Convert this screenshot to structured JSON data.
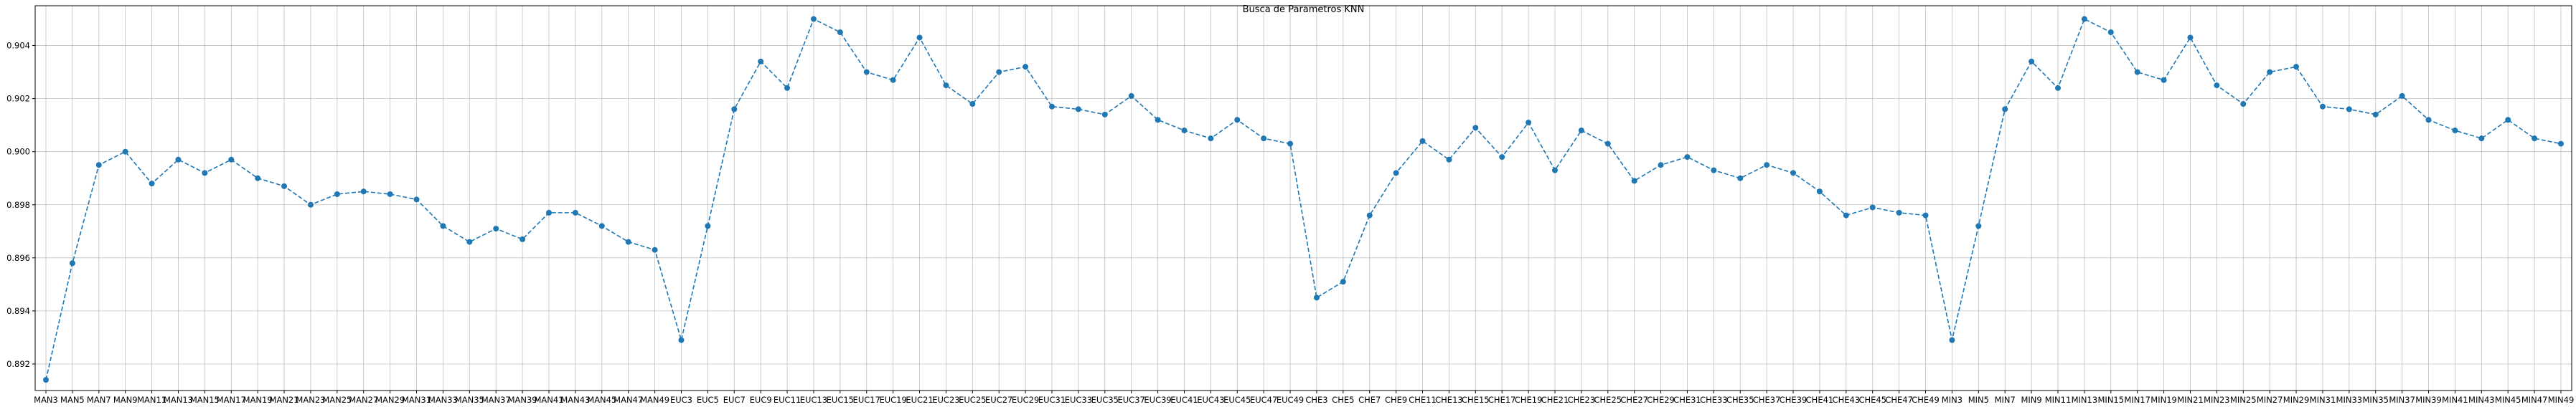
{
  "chart_data": {
    "type": "line",
    "title": "Busca de Parametros KNN",
    "xlabel": "",
    "ylabel": "",
    "ylim": [
      0.891,
      0.9055
    ],
    "yticks": [
      0.892,
      0.894,
      0.896,
      0.898,
      0.9,
      0.902,
      0.904
    ],
    "grid": true,
    "line_color": "#1f77b4",
    "line_style": "dashed",
    "marker": "circle",
    "categories": [
      "MAN3",
      "MAN5",
      "MAN7",
      "MAN9",
      "MAN11",
      "MAN13",
      "MAN15",
      "MAN17",
      "MAN19",
      "MAN21",
      "MAN23",
      "MAN25",
      "MAN27",
      "MAN29",
      "MAN31",
      "MAN33",
      "MAN35",
      "MAN37",
      "MAN39",
      "MAN41",
      "MAN43",
      "MAN45",
      "MAN47",
      "MAN49",
      "EUC3",
      "EUC5",
      "EUC7",
      "EUC9",
      "EUC11",
      "EUC13",
      "EUC15",
      "EUC17",
      "EUC19",
      "EUC21",
      "EUC23",
      "EUC25",
      "EUC27",
      "EUC29",
      "EUC31",
      "EUC33",
      "EUC35",
      "EUC37",
      "EUC39",
      "EUC41",
      "EUC43",
      "EUC45",
      "EUC47",
      "EUC49",
      "CHE3",
      "CHE5",
      "CHE7",
      "CHE9",
      "CHE11",
      "CHE13",
      "CHE15",
      "CHE17",
      "CHE19",
      "CHE21",
      "CHE23",
      "CHE25",
      "CHE27",
      "CHE29",
      "CHE31",
      "CHE33",
      "CHE35",
      "CHE37",
      "CHE39",
      "CHE41",
      "CHE43",
      "CHE45",
      "CHE47",
      "CHE49",
      "MIN3",
      "MIN5",
      "MIN7",
      "MIN9",
      "MIN11",
      "MIN13",
      "MIN15",
      "MIN17",
      "MIN19",
      "MIN21",
      "MIN23",
      "MIN25",
      "MIN27",
      "MIN29",
      "MIN31",
      "MIN33",
      "MIN35",
      "MIN37",
      "MIN39",
      "MIN41",
      "MIN43",
      "MIN45",
      "MIN47",
      "MIN49"
    ],
    "values": [
      0.8914,
      0.8958,
      0.8995,
      0.9,
      0.8988,
      0.8997,
      0.8992,
      0.8997,
      0.899,
      0.8987,
      0.898,
      0.8984,
      0.8985,
      0.8984,
      0.8982,
      0.8972,
      0.8966,
      0.8971,
      0.8967,
      0.8977,
      0.8977,
      0.8972,
      0.8966,
      0.8963,
      0.8929,
      0.8972,
      0.9016,
      0.9034,
      0.9024,
      0.905,
      0.9045,
      0.903,
      0.9027,
      0.9043,
      0.9025,
      0.9018,
      0.903,
      0.9032,
      0.9017,
      0.9016,
      0.9014,
      0.9021,
      0.9012,
      0.9008,
      0.9005,
      0.9012,
      0.9005,
      0.9003,
      0.8945,
      0.8951,
      0.8976,
      0.8992,
      0.9004,
      0.8997,
      0.9009,
      0.8998,
      0.9011,
      0.8993,
      0.9008,
      0.9003,
      0.8989,
      0.8995,
      0.8998,
      0.8993,
      0.899,
      0.8995,
      0.8992,
      0.8985,
      0.8976,
      0.8979,
      0.8977,
      0.8976,
      0.8929,
      0.8972,
      0.9016,
      0.9034,
      0.9024,
      0.905,
      0.9045,
      0.903,
      0.9027,
      0.9043,
      0.9025,
      0.9018,
      0.903,
      0.9032,
      0.9017,
      0.9016,
      0.9014,
      0.9021,
      0.9012,
      0.9008,
      0.9005,
      0.9012,
      0.9005,
      0.9003
    ]
  }
}
